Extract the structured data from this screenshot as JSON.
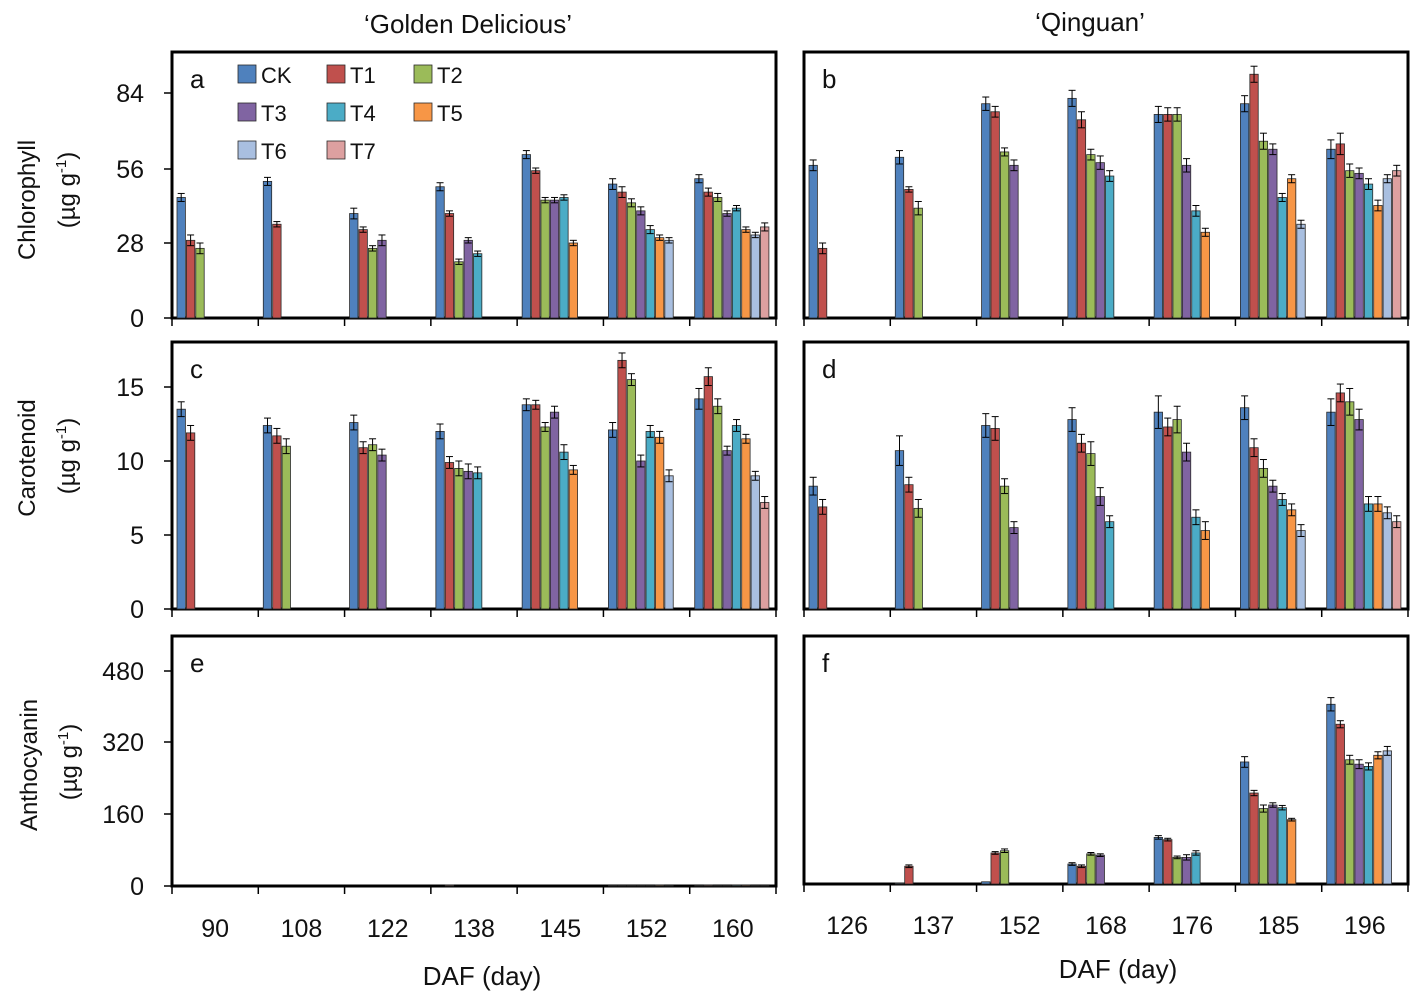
{
  "column_titles": [
    "‘Golden Delicious’",
    "‘Qinguan’"
  ],
  "xlabel": "DAF (day)",
  "ylabels": {
    "chlorophyll": {
      "name": "Chlorophyll",
      "unit_pre": "(µg g",
      "unit_sup": "-1",
      "unit_post": ")"
    },
    "carotenoid": {
      "name": "Carotenoid",
      "unit_pre": "(µg g",
      "unit_sup": "-1",
      "unit_post": ")"
    },
    "anthocyanin": {
      "name": "Anthocyanin",
      "unit_pre": "(µg g",
      "unit_sup": "-1",
      "unit_post": ")"
    }
  },
  "legend": [
    {
      "name": "CK",
      "color": "#4F81BD"
    },
    {
      "name": "T1",
      "color": "#C0504D"
    },
    {
      "name": "T2",
      "color": "#9BBB59"
    },
    {
      "name": "T3",
      "color": "#8064A2"
    },
    {
      "name": "T4",
      "color": "#4BACC6"
    },
    {
      "name": "T5",
      "color": "#F79646"
    },
    {
      "name": "T6",
      "color": "#A9BFE0"
    },
    {
      "name": "T7",
      "color": "#DDA0A0"
    }
  ],
  "chart_data": [
    {
      "panel": "a",
      "type": "bar",
      "variety": "Golden Delicious",
      "measure": "Chlorophyll",
      "ylim": [
        0,
        100
      ],
      "yticks": [
        0,
        28,
        56,
        84
      ],
      "categories": [
        "90",
        "108",
        "122",
        "138",
        "145",
        "152",
        "160"
      ],
      "series": [
        {
          "name": "CK",
          "values": [
            45,
            51,
            39,
            49,
            61,
            50,
            52
          ],
          "errors": [
            1.5,
            1.5,
            2,
            1.5,
            1.5,
            2,
            1.5
          ]
        },
        {
          "name": "T1",
          "values": [
            29,
            35,
            33,
            39,
            55,
            47,
            47
          ],
          "errors": [
            2,
            1,
            1,
            1,
            1,
            2,
            1.5
          ]
        },
        {
          "name": "T2",
          "values": [
            26,
            null,
            26,
            21,
            44,
            43,
            45
          ],
          "errors": [
            2,
            0,
            1,
            1,
            1,
            1.5,
            1.5
          ]
        },
        {
          "name": "T3",
          "values": [
            null,
            null,
            29,
            29,
            44,
            40,
            39
          ],
          "errors": [
            0,
            0,
            2,
            1,
            1,
            1.5,
            1
          ]
        },
        {
          "name": "T4",
          "values": [
            null,
            null,
            null,
            24,
            45,
            33,
            41
          ],
          "errors": [
            0,
            0,
            0,
            1,
            1,
            1.5,
            1
          ]
        },
        {
          "name": "T5",
          "values": [
            null,
            null,
            null,
            null,
            28,
            30,
            33
          ],
          "errors": [
            0,
            0,
            0,
            0,
            1,
            1,
            1
          ]
        },
        {
          "name": "T6",
          "values": [
            null,
            null,
            null,
            null,
            null,
            29,
            31
          ],
          "errors": [
            0,
            0,
            0,
            0,
            0,
            1,
            1
          ]
        },
        {
          "name": "T7",
          "values": [
            null,
            null,
            null,
            null,
            null,
            null,
            34
          ],
          "errors": [
            0,
            0,
            0,
            0,
            0,
            0,
            1.5
          ]
        }
      ]
    },
    {
      "panel": "b",
      "type": "bar",
      "variety": "Qinguan",
      "measure": "Chlorophyll",
      "ylim": [
        0,
        100
      ],
      "yticks": [
        0,
        28,
        56,
        84
      ],
      "categories": [
        "126",
        "137",
        "152",
        "168",
        "176",
        "185",
        "196"
      ],
      "series": [
        {
          "name": "CK",
          "values": [
            57,
            60,
            80,
            82,
            76,
            80,
            63
          ],
          "errors": [
            2,
            2.5,
            2.5,
            3,
            3,
            3,
            3.5
          ]
        },
        {
          "name": "T1",
          "values": [
            26,
            48,
            77,
            74,
            76,
            91,
            65
          ],
          "errors": [
            2,
            1,
            2,
            3,
            2.5,
            3,
            4
          ]
        },
        {
          "name": "T2",
          "values": [
            null,
            41,
            62,
            61,
            76,
            66,
            55
          ],
          "errors": [
            0,
            2.5,
            1.5,
            2,
            2.5,
            3,
            2.5
          ]
        },
        {
          "name": "T3",
          "values": [
            null,
            null,
            57,
            58,
            57,
            63,
            54
          ],
          "errors": [
            0,
            0,
            2,
            2.5,
            2.5,
            2,
            2
          ]
        },
        {
          "name": "T4",
          "values": [
            null,
            null,
            null,
            53,
            40,
            45,
            50
          ],
          "errors": [
            0,
            0,
            0,
            2,
            2,
            1.5,
            2
          ]
        },
        {
          "name": "T5",
          "values": [
            null,
            null,
            null,
            null,
            32,
            52,
            42
          ],
          "errors": [
            0,
            0,
            0,
            0,
            1.5,
            1.5,
            2
          ]
        },
        {
          "name": "T6",
          "values": [
            null,
            null,
            null,
            null,
            null,
            35,
            52
          ],
          "errors": [
            0,
            0,
            0,
            0,
            0,
            1.5,
            1.5
          ]
        },
        {
          "name": "T7",
          "values": [
            null,
            null,
            null,
            null,
            null,
            null,
            55
          ],
          "errors": [
            0,
            0,
            0,
            0,
            0,
            0,
            2
          ]
        }
      ]
    },
    {
      "panel": "c",
      "type": "bar",
      "variety": "Golden Delicious",
      "measure": "Carotenoid",
      "ylim": [
        0,
        17.5
      ],
      "yticks": [
        0,
        5,
        10,
        15
      ],
      "categories": [
        "90",
        "108",
        "122",
        "138",
        "145",
        "152",
        "160"
      ],
      "series": [
        {
          "name": "CK",
          "values": [
            13.5,
            12.4,
            12.6,
            12.0,
            13.8,
            12.1,
            14.2
          ],
          "errors": [
            0.5,
            0.5,
            0.5,
            0.5,
            0.4,
            0.5,
            0.7
          ]
        },
        {
          "name": "T1",
          "values": [
            11.9,
            11.7,
            10.9,
            9.9,
            13.8,
            16.8,
            15.7
          ],
          "errors": [
            0.5,
            0.5,
            0.4,
            0.4,
            0.3,
            0.5,
            0.6
          ]
        },
        {
          "name": "T2",
          "values": [
            null,
            11.0,
            11.1,
            9.5,
            12.3,
            15.5,
            13.7
          ],
          "errors": [
            0,
            0.5,
            0.4,
            0.5,
            0.3,
            0.4,
            0.5
          ]
        },
        {
          "name": "T3",
          "values": [
            null,
            null,
            10.4,
            9.3,
            13.3,
            10.0,
            10.7
          ],
          "errors": [
            0,
            0,
            0.4,
            0.5,
            0.4,
            0.4,
            0.3
          ]
        },
        {
          "name": "T4",
          "values": [
            null,
            null,
            null,
            9.2,
            10.6,
            12.0,
            12.4
          ],
          "errors": [
            0,
            0,
            0,
            0.4,
            0.5,
            0.4,
            0.4
          ]
        },
        {
          "name": "T5",
          "values": [
            null,
            null,
            null,
            null,
            9.4,
            11.6,
            11.5
          ],
          "errors": [
            0,
            0,
            0,
            0,
            0.3,
            0.4,
            0.3
          ]
        },
        {
          "name": "T6",
          "values": [
            null,
            null,
            null,
            null,
            null,
            9.0,
            9.0
          ],
          "errors": [
            0,
            0,
            0,
            0,
            0,
            0.4,
            0.3
          ]
        },
        {
          "name": "T7",
          "values": [
            null,
            null,
            null,
            null,
            null,
            null,
            7.2
          ],
          "errors": [
            0,
            0,
            0,
            0,
            0,
            0,
            0.4
          ]
        }
      ]
    },
    {
      "panel": "d",
      "type": "bar",
      "variety": "Qinguan",
      "measure": "Carotenoid",
      "ylim": [
        0,
        17.5
      ],
      "yticks": [
        0,
        5,
        10,
        15
      ],
      "categories": [
        "126",
        "137",
        "152",
        "168",
        "176",
        "185",
        "196"
      ],
      "series": [
        {
          "name": "CK",
          "values": [
            8.3,
            10.7,
            12.4,
            12.8,
            13.3,
            13.6,
            13.3
          ],
          "errors": [
            0.6,
            1.0,
            0.8,
            0.8,
            1.1,
            0.8,
            0.9
          ]
        },
        {
          "name": "T1",
          "values": [
            6.9,
            8.4,
            12.2,
            11.2,
            12.3,
            10.9,
            14.6
          ],
          "errors": [
            0.5,
            0.5,
            0.8,
            0.6,
            0.6,
            0.6,
            0.6
          ]
        },
        {
          "name": "T2",
          "values": [
            null,
            6.8,
            8.3,
            10.5,
            12.8,
            9.5,
            14.0
          ],
          "errors": [
            0,
            0.6,
            0.5,
            0.8,
            0.9,
            0.6,
            0.9
          ]
        },
        {
          "name": "T3",
          "values": [
            null,
            null,
            5.5,
            7.6,
            10.6,
            8.3,
            12.8
          ],
          "errors": [
            0,
            0,
            0.4,
            0.6,
            0.6,
            0.4,
            0.7
          ]
        },
        {
          "name": "T4",
          "values": [
            null,
            null,
            null,
            5.9,
            6.2,
            7.4,
            7.1
          ],
          "errors": [
            0,
            0,
            0,
            0.4,
            0.5,
            0.4,
            0.5
          ]
        },
        {
          "name": "T5",
          "values": [
            null,
            null,
            null,
            null,
            5.3,
            6.7,
            7.1
          ],
          "errors": [
            0,
            0,
            0,
            0,
            0.6,
            0.4,
            0.5
          ]
        },
        {
          "name": "T6",
          "values": [
            null,
            null,
            null,
            null,
            null,
            5.3,
            6.5
          ],
          "errors": [
            0,
            0,
            0,
            0,
            0,
            0.4,
            0.4
          ]
        },
        {
          "name": "T7",
          "values": [
            null,
            null,
            null,
            null,
            null,
            null,
            5.9
          ],
          "errors": [
            0,
            0,
            0,
            0,
            0,
            0,
            0.4
          ]
        }
      ]
    },
    {
      "panel": "e",
      "type": "bar",
      "variety": "Golden Delicious",
      "measure": "Anthocyanin",
      "ylim": [
        0,
        500
      ],
      "yticks": [
        0,
        160,
        320,
        480
      ],
      "categories": [
        "90",
        "108",
        "122",
        "138",
        "145",
        "152",
        "160"
      ],
      "series": [
        {
          "name": "CK",
          "values": [
            0,
            0,
            0,
            0,
            0,
            1,
            1
          ],
          "errors": [
            0,
            0,
            0,
            0,
            0,
            0,
            0
          ]
        },
        {
          "name": "T1",
          "values": [
            0,
            0,
            0,
            2,
            0,
            1,
            2
          ],
          "errors": [
            0,
            0,
            0,
            0,
            0,
            0,
            0
          ]
        },
        {
          "name": "T2",
          "values": [
            null,
            0,
            0,
            0,
            0,
            1,
            1
          ],
          "errors": [
            0,
            0,
            0,
            0,
            0,
            0,
            0
          ]
        },
        {
          "name": "T3",
          "values": [
            null,
            null,
            0,
            0,
            0,
            1,
            1
          ],
          "errors": [
            0,
            0,
            0,
            0,
            0,
            0,
            0
          ]
        },
        {
          "name": "T4",
          "values": [
            null,
            null,
            null,
            0,
            0,
            1,
            2
          ],
          "errors": [
            0,
            0,
            0,
            0,
            0,
            0,
            0
          ]
        },
        {
          "name": "T5",
          "values": [
            null,
            null,
            null,
            null,
            0,
            2,
            2
          ],
          "errors": [
            0,
            0,
            0,
            0,
            0,
            0,
            0
          ]
        },
        {
          "name": "T6",
          "values": [
            null,
            null,
            null,
            null,
            null,
            1,
            1
          ],
          "errors": [
            0,
            0,
            0,
            0,
            0,
            0,
            0
          ]
        },
        {
          "name": "T7",
          "values": [
            null,
            null,
            null,
            null,
            null,
            null,
            1
          ],
          "errors": [
            0,
            0,
            0,
            0,
            0,
            0,
            0
          ]
        }
      ]
    },
    {
      "panel": "f",
      "type": "bar",
      "variety": "Qinguan",
      "measure": "Anthocyanin",
      "ylim": [
        0,
        500
      ],
      "yticks": [
        0,
        160,
        320,
        480
      ],
      "categories": [
        "126",
        "137",
        "152",
        "168",
        "176",
        "185",
        "196"
      ],
      "series": [
        {
          "name": "CK",
          "values": [
            0,
            2,
            5,
            45,
            105,
            275,
            405
          ],
          "errors": [
            0,
            0,
            0,
            3,
            4,
            12,
            15
          ]
        },
        {
          "name": "T1",
          "values": [
            0,
            40,
            70,
            40,
            100,
            205,
            360
          ],
          "errors": [
            0,
            3,
            3,
            3,
            3,
            6,
            8
          ]
        },
        {
          "name": "T2",
          "values": [
            null,
            0,
            75,
            68,
            60,
            170,
            280
          ],
          "errors": [
            0,
            0,
            4,
            3,
            3,
            8,
            10
          ]
        },
        {
          "name": "T3",
          "values": [
            null,
            null,
            0,
            65,
            60,
            178,
            270
          ],
          "errors": [
            0,
            0,
            0,
            3,
            6,
            5,
            10
          ]
        },
        {
          "name": "T4",
          "values": [
            null,
            null,
            null,
            0,
            70,
            172,
            265
          ],
          "errors": [
            0,
            0,
            0,
            0,
            5,
            5,
            8
          ]
        },
        {
          "name": "T5",
          "values": [
            null,
            null,
            null,
            null,
            0,
            145,
            290
          ],
          "errors": [
            0,
            0,
            0,
            0,
            0,
            3,
            8
          ]
        },
        {
          "name": "T6",
          "values": [
            null,
            null,
            null,
            null,
            null,
            0,
            300
          ],
          "errors": [
            0,
            0,
            0,
            0,
            0,
            0,
            10
          ]
        },
        {
          "name": "T7",
          "values": [
            null,
            null,
            null,
            null,
            null,
            null,
            0
          ],
          "errors": [
            0,
            0,
            0,
            0,
            0,
            0,
            0
          ]
        }
      ]
    }
  ]
}
